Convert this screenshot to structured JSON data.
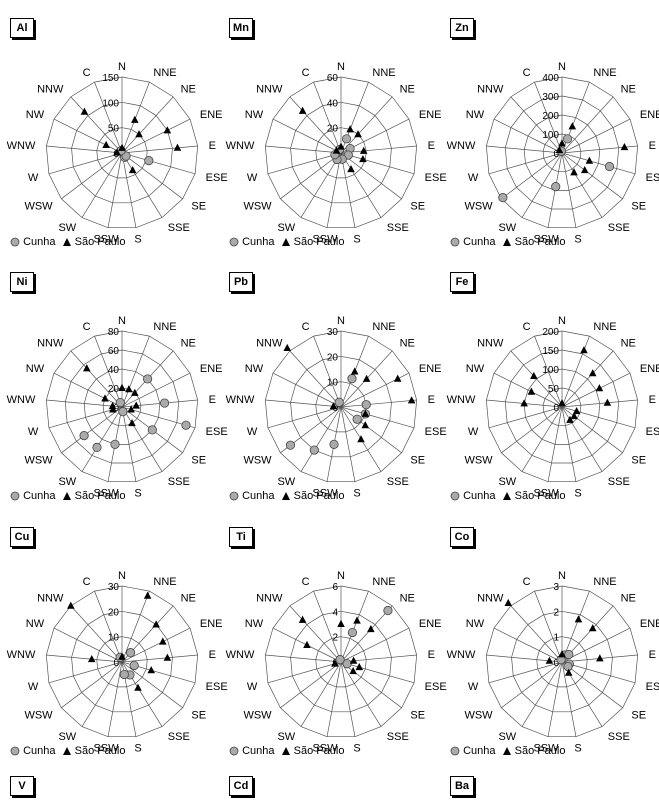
{
  "legend": {
    "series_a": "Cunha",
    "series_b": "São Paulo",
    "series_a_color": "#aaaaaa",
    "series_b_color": "#000000"
  },
  "directions": [
    "N",
    "NNE",
    "NE",
    "ENE",
    "E",
    "ESE",
    "SE",
    "SSE",
    "S",
    "SSW",
    "SW",
    "WSW",
    "W",
    "WNW",
    "NW",
    "NNW",
    "C"
  ],
  "chart_data": [
    {
      "type": "radar",
      "title": "Al",
      "ticks": [
        "0",
        "50",
        "100",
        "150"
      ],
      "rmax": 150,
      "series": [
        {
          "name": "Cunha",
          "values": {
            "ESE": 55,
            "SSE": 10,
            "SE": 10,
            "C": 5
          }
        },
        {
          "name": "São Paulo",
          "values": {
            "NNE": 70,
            "NE": 50,
            "ENE": 100,
            "E": 110,
            "SSE": 40,
            "NW": 35,
            "NNW": 110,
            "N": 10,
            "WNW": 10
          }
        }
      ]
    },
    {
      "type": "radar",
      "title": "Mn",
      "ticks": [
        "0",
        "20",
        "40",
        "60"
      ],
      "rmax": 60,
      "series": [
        {
          "name": "Cunha",
          "values": {
            "NNE": 12,
            "ENE": 8,
            "ESE": 6,
            "S": 5,
            "SW": 6,
            "W": 5,
            "C": 3
          }
        },
        {
          "name": "São Paulo",
          "values": {
            "NNE": 20,
            "NE": 20,
            "E": 18,
            "ESE": 18,
            "SSE": 15,
            "NNW": 45,
            "N": 5,
            "NW": 4
          }
        }
      ]
    },
    {
      "type": "radar",
      "title": "Zn",
      "ticks": [
        "0",
        "100",
        "200",
        "300",
        "400"
      ],
      "rmax": 400,
      "series": [
        {
          "name": "Cunha",
          "values": {
            "NNE": 80,
            "ESE": 260,
            "SSW": 180,
            "WSW": 390,
            "C": 10
          }
        },
        {
          "name": "São Paulo",
          "values": {
            "NNE": 150,
            "E": 330,
            "ESE": 150,
            "SE": 150,
            "SSE": 120,
            "N": 50,
            "NNW": 20
          }
        }
      ]
    },
    {
      "type": "radar",
      "title": "Ni",
      "ticks": [
        "0",
        "20",
        "40",
        "60",
        "80"
      ],
      "rmax": 80,
      "series": [
        {
          "name": "Cunha",
          "values": {
            "NE": 40,
            "E": 45,
            "ESE": 70,
            "SE": 40,
            "SSW": 40,
            "SW": 50,
            "WSW": 50,
            "S": 5,
            "C": 5
          }
        },
        {
          "name": "São Paulo",
          "values": {
            "N": 20,
            "NNE": 20,
            "NE": 20,
            "E": 15,
            "ESE": 10,
            "SSE": 20,
            "NNW": 55,
            "NW": 20,
            "W": 10,
            "WNW": 10
          }
        }
      ]
    },
    {
      "type": "radar",
      "title": "Pb",
      "ticks": [
        "0",
        "10",
        "20",
        "30"
      ],
      "rmax": 30,
      "series": [
        {
          "name": "Cunha",
          "values": {
            "NNE": 12,
            "E": 10,
            "ESE": 10,
            "SE": 8,
            "SSW": 15,
            "SW": 20,
            "WSW": 25,
            "C": 2
          }
        },
        {
          "name": "São Paulo",
          "values": {
            "NNE": 15,
            "NE": 15,
            "ENE": 25,
            "E": 28,
            "ESE": 10,
            "SE": 12,
            "SSE": 15,
            "NNW": 32,
            "WNW": 3
          }
        }
      ]
    },
    {
      "type": "radar",
      "title": "Fe",
      "ticks": [
        "0",
        "50",
        "100",
        "150",
        "200"
      ],
      "rmax": 200,
      "series": [
        {
          "name": "Cunha",
          "values": {}
        },
        {
          "name": "São Paulo",
          "values": {
            "NNE": 160,
            "NE": 120,
            "ENE": 110,
            "E": 120,
            "ESE": 40,
            "SE": 40,
            "SSE": 40,
            "NNW": 110,
            "NW": 90,
            "WNW": 100,
            "N": 10
          }
        }
      ]
    },
    {
      "type": "radar",
      "title": "Cu",
      "ticks": [
        "0",
        "10",
        "20",
        "30"
      ],
      "rmax": 30,
      "series": [
        {
          "name": "Cunha",
          "values": {
            "NE": 5,
            "ESE": 5,
            "SSE": 6,
            "S": 5,
            "C": 2
          }
        },
        {
          "name": "São Paulo",
          "values": {
            "NNE": 28,
            "NE": 20,
            "ENE": 18,
            "E": 18,
            "ESE": 12,
            "SSE": 12,
            "NNW": 30,
            "WNW": 12,
            "N": 2
          }
        }
      ]
    },
    {
      "type": "radar",
      "title": "Ti",
      "ticks": [
        "0",
        "2",
        "4",
        "6"
      ],
      "rmax": 6,
      "series": [
        {
          "name": "Cunha",
          "values": {
            "NNE": 2.5,
            "NE": 5.5,
            "ESE": 0.5,
            "C": 0.2
          }
        },
        {
          "name": "São Paulo",
          "values": {
            "N": 3,
            "NNE": 3.5,
            "NE": 3.5,
            "E": 1,
            "ESE": 1.5,
            "SE": 1.2,
            "NNW": 4.5,
            "NW": 3,
            "W": 0.5
          }
        }
      ]
    },
    {
      "type": "radar",
      "title": "Co",
      "ticks": [
        "0",
        "1",
        "2",
        "3"
      ],
      "rmax": 3,
      "series": [
        {
          "name": "Cunha",
          "values": {
            "NNE": 0.3,
            "NE": 0.4,
            "ESE": 0.3,
            "SE": 0.3,
            "C": 0.1
          }
        },
        {
          "name": "São Paulo",
          "values": {
            "NNE": 1.8,
            "NE": 1.8,
            "E": 1.5,
            "SSE": 0.5,
            "NNW": 3.2,
            "WNW": 0.5,
            "N": 0.3
          }
        }
      ]
    }
  ],
  "bottom_titles": [
    "V",
    "Cd",
    "Ba"
  ]
}
